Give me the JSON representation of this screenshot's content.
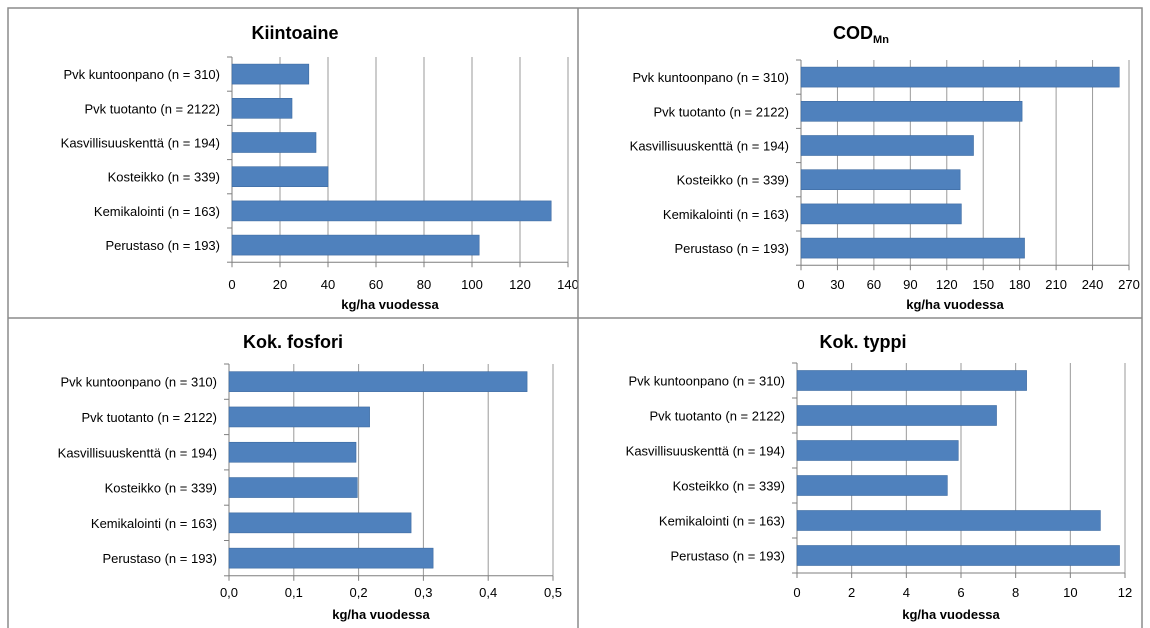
{
  "figure": {
    "colors": {
      "bar": "#4f81bd",
      "bar_edge": "#3c6aa0",
      "grid": "#9a9a9a",
      "border": "#8c8c8c",
      "axis": "#7f7f7f"
    }
  },
  "chart_data": [
    {
      "type": "bar",
      "orientation": "horizontal",
      "title": "Kiintoaine",
      "title_sub": "",
      "categories": [
        "Pvk kuntoonpano (n = 310)",
        "Pvk tuotanto (n = 2122)",
        "Kasvillisuuskenttä (n = 194)",
        "Kosteikko (n = 339)",
        "Kemikalointi (n = 163)",
        "Perustaso (n = 193)"
      ],
      "values": [
        32,
        25,
        35,
        40,
        133,
        103
      ],
      "xlabel": "kg/ha vuodessa",
      "xlim": [
        0,
        140
      ],
      "ticks": [
        "0",
        "20",
        "40",
        "60",
        "80",
        "100",
        "120",
        "140"
      ],
      "grid": true
    },
    {
      "type": "bar",
      "orientation": "horizontal",
      "title": "COD",
      "title_sub": "Mn",
      "categories": [
        "Pvk kuntoonpano (n = 310)",
        "Pvk tuotanto (n = 2122)",
        "Kasvillisuuskenttä (n = 194)",
        "Kosteikko (n = 339)",
        "Kemikalointi (n = 163)",
        "Perustaso (n = 193)"
      ],
      "values": [
        262,
        182,
        142,
        131,
        132,
        184
      ],
      "xlabel": "kg/ha vuodessa",
      "xlim": [
        0,
        270
      ],
      "ticks": [
        "0",
        "30",
        "60",
        "90",
        "120",
        "150",
        "180",
        "210",
        "240",
        "270"
      ],
      "grid": true
    },
    {
      "type": "bar",
      "orientation": "horizontal",
      "title": "Kok. fosfori",
      "title_sub": "",
      "categories": [
        "Pvk kuntoonpano (n = 310)",
        "Pvk tuotanto (n = 2122)",
        "Kasvillisuuskenttä (n = 194)",
        "Kosteikko (n = 339)",
        "Kemikalointi (n = 163)",
        "Perustaso (n = 193)"
      ],
      "values": [
        0.46,
        0.217,
        0.196,
        0.198,
        0.281,
        0.315
      ],
      "xlabel": "kg/ha vuodessa",
      "xlim": [
        0,
        0.5
      ],
      "ticks": [
        "0,0",
        "0,1",
        "0,2",
        "0,3",
        "0,4",
        "0,5"
      ],
      "grid": true
    },
    {
      "type": "bar",
      "orientation": "horizontal",
      "title": "Kok. typpi",
      "title_sub": "",
      "categories": [
        "Pvk kuntoonpano (n = 310)",
        "Pvk tuotanto (n = 2122)",
        "Kasvillisuuskenttä (n = 194)",
        "Kosteikko (n = 339)",
        "Kemikalointi (n = 163)",
        "Perustaso (n = 193)"
      ],
      "values": [
        8.4,
        7.3,
        5.9,
        5.5,
        11.1,
        11.8
      ],
      "xlabel": "kg/ha vuodessa",
      "xlim": [
        0,
        12
      ],
      "ticks": [
        "0",
        "2",
        "4",
        "6",
        "8",
        "10",
        "12"
      ],
      "grid": true
    }
  ]
}
